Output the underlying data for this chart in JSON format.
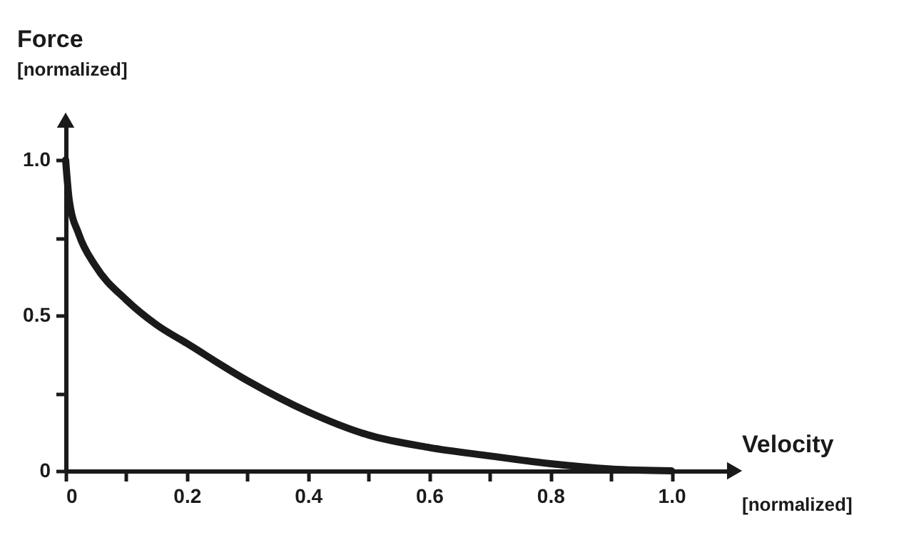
{
  "chart_data": {
    "type": "line",
    "xlabel": "Velocity\n[normalized]",
    "ylabel": "Force\n[normalized]",
    "x": [
      0,
      0.006,
      0.022,
      0.049,
      0.1,
      0.15,
      0.2,
      0.3,
      0.4,
      0.5,
      0.6,
      0.7,
      0.8,
      0.9,
      1.0
    ],
    "series": [
      {
        "color": "#1a1a1a",
        "values": [
          1.0,
          0.87,
          0.76,
          0.66,
          0.55,
          0.47,
          0.41,
          0.29,
          0.19,
          0.115,
          0.075,
          0.048,
          0.023,
          0.006,
          0
        ]
      }
    ],
    "xlim": [
      0,
      1.1
    ],
    "ylim": [
      0,
      1.12
    ],
    "xticks": [
      0,
      {
        "value": 0.1,
        "label": null
      },
      0.2,
      {
        "value": 0.3,
        "label": null
      },
      0.4,
      {
        "value": 0.5,
        "label": null
      },
      0.6,
      {
        "value": 0.7,
        "label": null
      },
      0.8,
      {
        "value": 0.9,
        "label": null
      },
      {
        "value": 1.0,
        "label": "1.0"
      }
    ],
    "yticks": [
      0,
      {
        "value": 0.25,
        "label": null
      },
      0.5,
      {
        "value": 0.75,
        "label": null
      },
      {
        "value": 1.0,
        "label": "1.0"
      }
    ],
    "grid": false,
    "legend": false,
    "marker": "none",
    "line_style": "solid"
  }
}
